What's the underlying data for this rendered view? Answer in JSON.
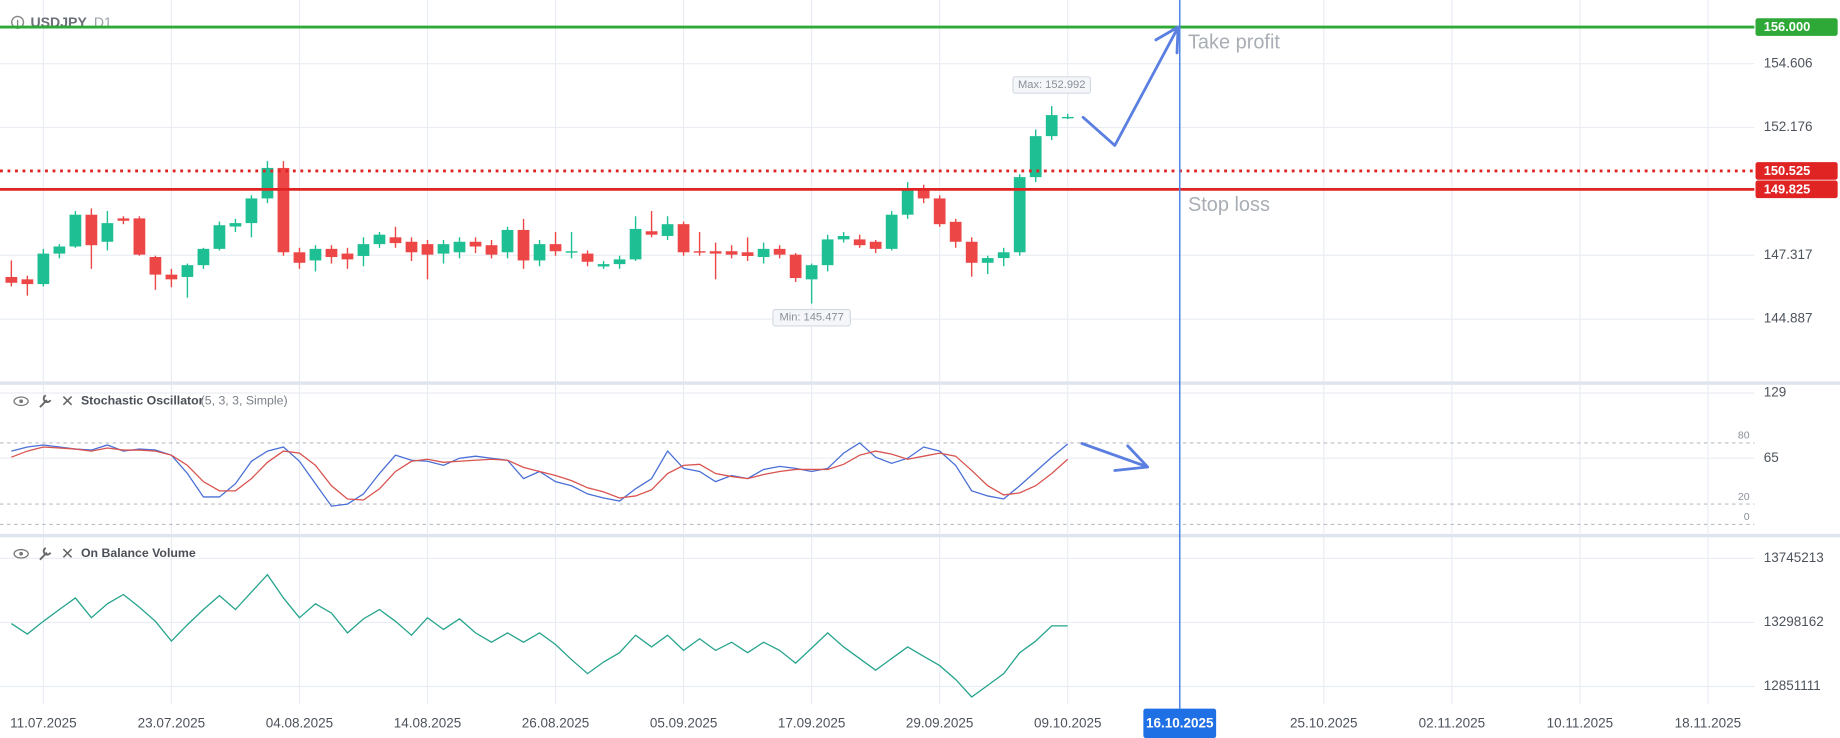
{
  "chart_data": [
    {
      "type": "candlestick",
      "title": "USDJPY",
      "subtitle": "D1",
      "xlim": [
        -0.71,
        108.9
      ],
      "xticks": [
        {
          "value": 2,
          "label": "11.07.2025"
        },
        {
          "value": 10,
          "label": "23.07.2025"
        },
        {
          "value": 18,
          "label": "04.08.2025"
        },
        {
          "value": 26,
          "label": "14.08.2025"
        },
        {
          "value": 34,
          "label": "26.08.2025"
        },
        {
          "value": 42,
          "label": "05.09.2025"
        },
        {
          "value": 50,
          "label": "17.09.2025"
        },
        {
          "value": 58,
          "label": "29.09.2025"
        },
        {
          "value": 66,
          "label": "09.10.2025"
        },
        {
          "value": 82,
          "label": "25.10.2025"
        },
        {
          "value": 90,
          "label": "02.11.2025"
        },
        {
          "value": 98,
          "label": "10.11.2025"
        },
        {
          "value": 106,
          "label": "18.11.2025"
        }
      ],
      "crosshair": {
        "value": 73,
        "label": "16.10.2025"
      },
      "ylim": [
        142.52,
        157.03
      ],
      "yticks": [
        154.606,
        152.176,
        147.317,
        144.887
      ],
      "grid": true,
      "up_color": "#1fbf94",
      "down_color": "#ec4646",
      "open": [
        146.49,
        146.4,
        146.22,
        147.38,
        147.65,
        148.86,
        147.83,
        148.72,
        148.72,
        147.25,
        146.58,
        146.49,
        146.94,
        147.56,
        148.41,
        148.54,
        149.48,
        150.64,
        147.43,
        147.12,
        147.56,
        147.38,
        147.29,
        147.74,
        148.0,
        147.83,
        147.74,
        147.38,
        147.43,
        147.83,
        147.7,
        147.43,
        148.28,
        147.12,
        147.74,
        147.43,
        147.38,
        146.89,
        146.98,
        147.16,
        148.23,
        148.05,
        148.5,
        147.47,
        147.47,
        147.47,
        147.43,
        147.25,
        147.56,
        147.34,
        146.4,
        146.94,
        147.92,
        147.92,
        147.83,
        147.56,
        148.86,
        149.84,
        149.48,
        148.59,
        147.83,
        147.03,
        147.21,
        147.43,
        150.29,
        151.85,
        152.54
      ],
      "high": [
        147.12,
        146.54,
        147.56,
        147.74,
        149.0,
        149.1,
        149.0,
        148.8,
        148.8,
        147.3,
        146.8,
        147.0,
        147.6,
        148.6,
        148.7,
        149.6,
        150.9,
        150.9,
        147.6,
        147.7,
        147.7,
        147.6,
        148.0,
        148.2,
        148.4,
        148.0,
        147.9,
        147.9,
        148.0,
        148.0,
        147.9,
        148.4,
        148.7,
        147.9,
        148.2,
        148.2,
        147.5,
        147.1,
        147.3,
        148.8,
        149.0,
        148.8,
        148.6,
        148.2,
        147.8,
        147.7,
        148.0,
        147.8,
        147.7,
        147.4,
        147.0,
        148.1,
        148.2,
        148.1,
        147.9,
        149.0,
        150.1,
        150.0,
        149.6,
        148.7,
        148.0,
        147.3,
        147.6,
        150.4,
        152.1,
        152.992,
        152.7
      ],
      "low": [
        146.13,
        145.78,
        146.13,
        147.2,
        147.6,
        146.8,
        147.5,
        148.5,
        147.3,
        146.0,
        146.1,
        145.7,
        146.8,
        147.5,
        148.2,
        148.0,
        149.3,
        147.3,
        146.8,
        146.7,
        147.0,
        146.8,
        146.9,
        147.6,
        147.6,
        147.1,
        146.4,
        147.0,
        147.2,
        147.4,
        147.2,
        147.2,
        146.8,
        146.9,
        147.3,
        147.2,
        146.9,
        146.8,
        146.8,
        147.1,
        148.0,
        147.9,
        147.3,
        147.3,
        146.4,
        147.2,
        147.1,
        147.0,
        147.2,
        146.3,
        145.477,
        146.7,
        147.8,
        147.6,
        147.4,
        147.5,
        148.7,
        149.3,
        148.4,
        147.6,
        146.5,
        146.6,
        146.9,
        147.3,
        150.1,
        151.7,
        152.5
      ],
      "close": [
        146.27,
        146.22,
        147.38,
        147.65,
        148.86,
        147.7,
        148.54,
        148.63,
        147.34,
        146.58,
        146.4,
        146.94,
        147.56,
        148.46,
        148.54,
        149.48,
        150.64,
        147.43,
        147.03,
        147.56,
        147.25,
        147.16,
        147.74,
        148.1,
        147.78,
        147.43,
        147.34,
        147.74,
        147.83,
        147.65,
        147.34,
        148.28,
        147.12,
        147.74,
        147.47,
        147.47,
        147.07,
        146.98,
        147.16,
        148.32,
        148.1,
        148.5,
        147.43,
        147.43,
        147.38,
        147.34,
        147.29,
        147.56,
        147.34,
        146.45,
        146.94,
        147.92,
        148.05,
        147.7,
        147.56,
        148.86,
        149.84,
        149.48,
        148.5,
        147.83,
        147.03,
        147.21,
        147.43,
        150.29,
        151.85,
        152.65,
        152.58
      ],
      "max_label": "Max: 152.992",
      "min_label": "Min: 145.477",
      "levels": [
        {
          "value": 156,
          "label": "156.000",
          "color": "#2ea836",
          "style": "solid",
          "annotation": "Take profit"
        },
        {
          "value": 150.525,
          "color": "#e02424",
          "style": "dotted"
        },
        {
          "value": 149.825,
          "color": "#e02424",
          "style": "solid",
          "annotation": "Stop loss"
        }
      ]
    },
    {
      "type": "line",
      "title": "Stochastic Oscillator",
      "subtitle": "(5, 3, 3, Simple)",
      "ylim": [
        -9.2,
        137
      ],
      "yticks": [
        65,
        129
      ],
      "levels": [
        80,
        20,
        0
      ],
      "series": [
        {
          "color": "#4a6fd6",
          "values": [
            72,
            76,
            78,
            76,
            74,
            73,
            78,
            72,
            74,
            73,
            68,
            50,
            27,
            27,
            40,
            62,
            72,
            76,
            62,
            40,
            18,
            20,
            30,
            50,
            68,
            63,
            62,
            58,
            65,
            67,
            65,
            63,
            45,
            52,
            42,
            38,
            30,
            26,
            23,
            35,
            45,
            72,
            55,
            52,
            42,
            48,
            45,
            54,
            57,
            55,
            52,
            55,
            70,
            80,
            66,
            60,
            65,
            76,
            72,
            58,
            33,
            28,
            25,
            38,
            52,
            66,
            79
          ]
        },
        {
          "color": "#d9534f",
          "values": [
            66,
            72,
            76,
            75,
            74,
            72,
            75,
            73,
            73,
            72,
            68,
            58,
            42,
            33,
            33,
            45,
            61,
            72,
            70,
            58,
            38,
            25,
            24,
            35,
            52,
            62,
            64,
            61,
            62,
            63,
            64,
            63,
            56,
            52,
            48,
            43,
            36,
            32,
            26,
            28,
            34,
            50,
            58,
            59,
            50,
            47,
            45,
            49,
            52,
            54,
            54,
            54,
            59,
            68,
            72,
            69,
            64,
            67,
            70,
            67,
            53,
            38,
            29,
            31,
            38,
            50,
            64
          ]
        }
      ]
    },
    {
      "type": "line",
      "title": "On Balance Volume",
      "ylim": [
        12729191,
        13891517
      ],
      "yticks": [
        13745213,
        13298162,
        12851111
      ],
      "series": [
        {
          "color": "#26a48c",
          "values": [
            13290000,
            13217000,
            13306000,
            13388000,
            13469000,
            13331000,
            13428000,
            13493000,
            13404000,
            13306000,
            13168000,
            13282000,
            13388000,
            13485000,
            13388000,
            13510000,
            13631000,
            13469000,
            13331000,
            13428000,
            13363000,
            13225000,
            13323000,
            13388000,
            13306000,
            13209000,
            13331000,
            13249000,
            13323000,
            13225000,
            13160000,
            13225000,
            13160000,
            13225000,
            13144000,
            13038000,
            12941000,
            13022000,
            13087000,
            13209000,
            13127000,
            13209000,
            13103000,
            13184000,
            13103000,
            13160000,
            13087000,
            13160000,
            13103000,
            13014000,
            13119000,
            13225000,
            13127000,
            13046000,
            12965000,
            13046000,
            13127000,
            13062000,
            12997000,
            12900000,
            12778000,
            12859000,
            12941000,
            13087000,
            13168000,
            13274000,
            13274000
          ]
        }
      ]
    }
  ]
}
